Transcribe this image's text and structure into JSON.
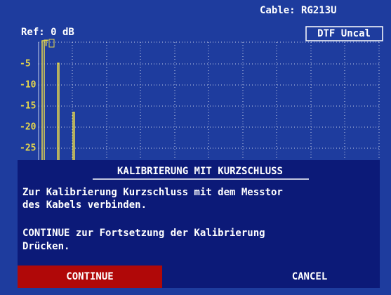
{
  "header": {
    "cable": "Cable: RG213U",
    "ref": "Ref: 0 dB",
    "mode": "DTF Uncal",
    "marker": "T"
  },
  "y_labels": [
    "-5",
    "-10",
    "-15",
    "-20",
    "-25"
  ],
  "dialog": {
    "title": "KALIBRIERUNG MIT KURZSCHLUSS",
    "lines": [
      "Zur Kalibrierung Kurzschluss mit dem Messtor",
      "des Kabels verbinden.",
      "CONTINUE zur Fortsetzung der Kalibrierung",
      "Drücken."
    ]
  },
  "buttons": [
    "CONTINUE",
    "CANCEL"
  ]
}
